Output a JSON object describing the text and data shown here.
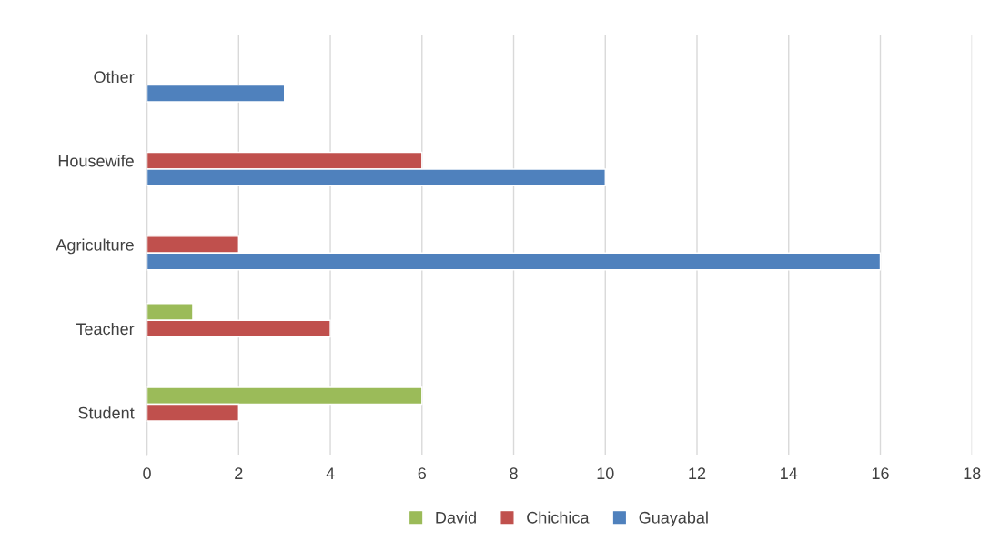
{
  "chart_data": {
    "type": "bar",
    "orientation": "horizontal",
    "categories": [
      "Other",
      "Housewife",
      "Agriculture",
      "Teacher",
      "Student"
    ],
    "series": [
      {
        "name": "David",
        "color": "#9bbb59",
        "values": [
          null,
          null,
          null,
          1,
          6
        ]
      },
      {
        "name": "Chichica",
        "color": "#c0504d",
        "values": [
          null,
          6,
          2,
          4,
          2
        ]
      },
      {
        "name": "Guayabal",
        "color": "#4f81bd",
        "values": [
          3,
          10,
          16,
          null,
          null
        ]
      }
    ],
    "xlim": [
      0,
      18
    ],
    "xticks": [
      0,
      2,
      4,
      6,
      8,
      10,
      12,
      14,
      16,
      18
    ],
    "grid": "x",
    "legend": "bottom"
  }
}
